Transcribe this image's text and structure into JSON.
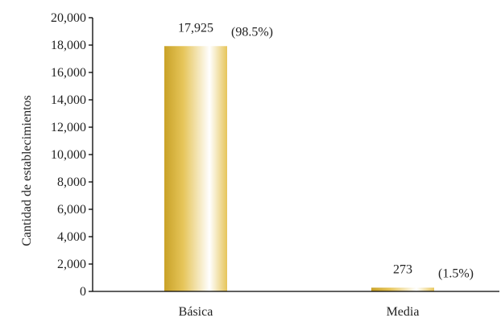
{
  "chart_data": {
    "type": "bar",
    "categories": [
      "Básica",
      "Media"
    ],
    "values": [
      17925,
      273
    ],
    "value_labels": [
      "17,925",
      "273"
    ],
    "percent_labels": [
      "(98.5%)",
      "(1.5%)"
    ],
    "title": "",
    "xlabel": "",
    "ylabel": "Cantidad de establecimientos",
    "ylim": [
      0,
      20000
    ],
    "yticks": [
      0,
      2000,
      4000,
      6000,
      8000,
      10000,
      12000,
      14000,
      16000,
      18000,
      20000
    ],
    "ytick_labels": [
      "0",
      "2,000",
      "4,000",
      "6,000",
      "8,000",
      "10,000",
      "12,000",
      "14,000",
      "16,000",
      "18,000",
      "20,000"
    ],
    "grid": false,
    "legend": "none",
    "colors": {
      "bar_dark": "#c9a227",
      "bar_mid": "#e6c55a",
      "bar_light": "#ffffff"
    }
  }
}
